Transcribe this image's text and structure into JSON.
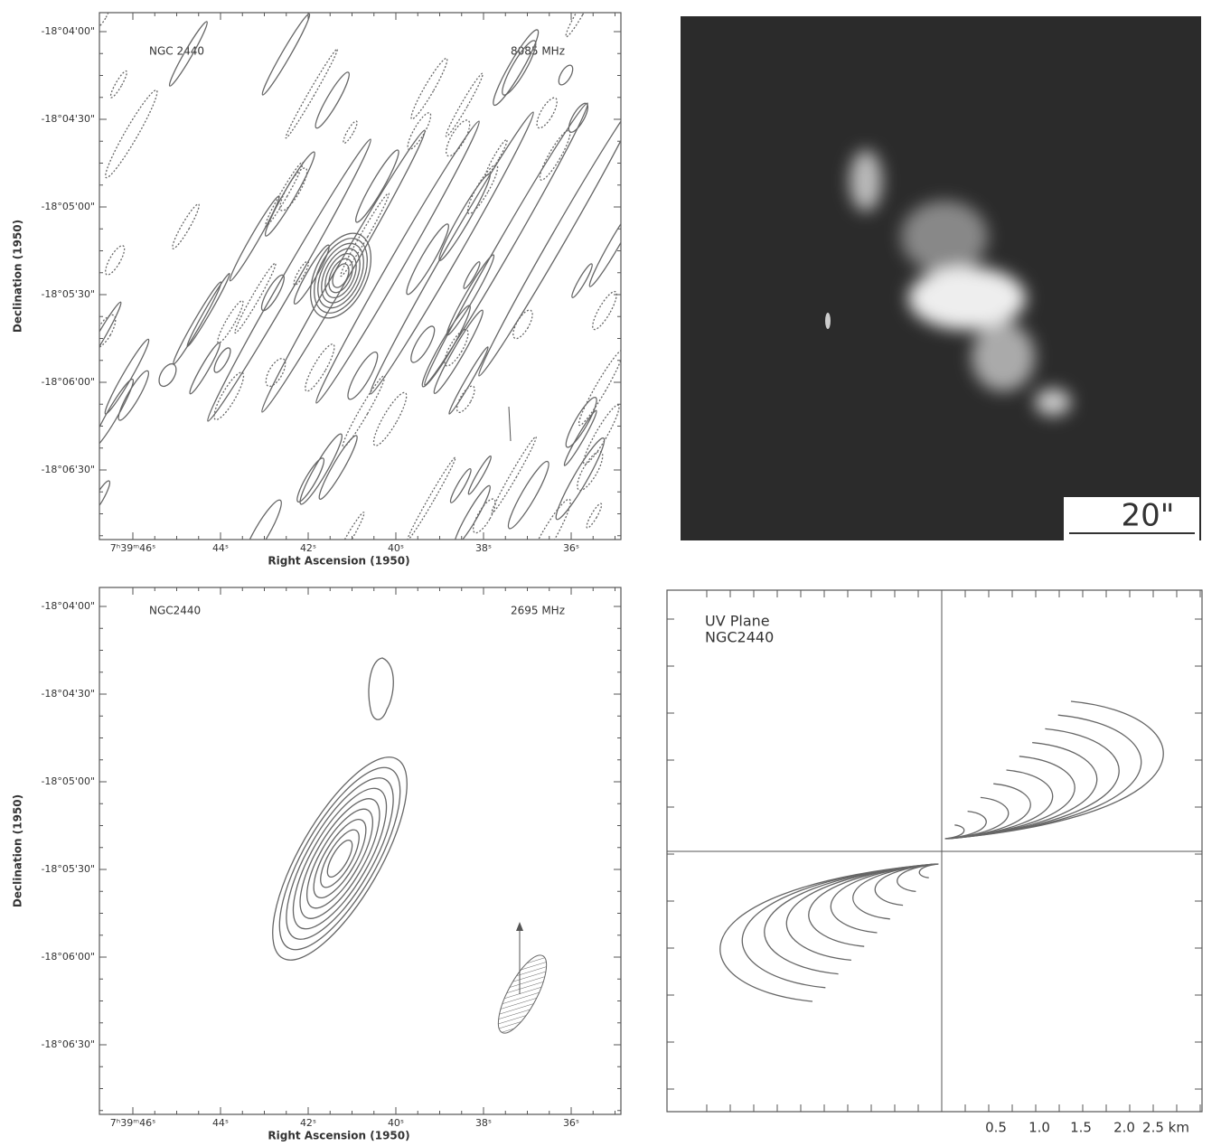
{
  "panels": [
    {
      "source": "NGC 2440",
      "frequency": "8085 MHz",
      "y_axis_title": "Declination (1950)",
      "x_axis_title": "Right Ascension (1950)",
      "y_ticks": [
        "-18°04'00\"",
        "-18°04'30\"",
        "-18°05'00\"",
        "-18°05'30\"",
        "-18°06'00\"",
        "-18°06'30\""
      ],
      "x_ticks": [
        "7ʰ39ᵐ46ˢ",
        "44ˢ",
        "42ˢ",
        "40ˢ",
        "38ˢ",
        "36ˢ"
      ]
    },
    {
      "scale_bar": "20\""
    },
    {
      "source": "NGC2440",
      "frequency": "2695 MHz",
      "y_axis_title": "Declination (1950)",
      "x_axis_title": "Right Ascension (1950)",
      "y_ticks": [
        "-18°04'00\"",
        "-18°04'30\"",
        "-18°05'00\"",
        "-18°05'30\"",
        "-18°06'00\"",
        "-18°06'30\""
      ],
      "x_ticks": [
        "7ʰ39ᵐ46ˢ",
        "44ˢ",
        "42ˢ",
        "40ˢ",
        "38ˢ",
        "36ˢ"
      ]
    },
    {
      "title": "UV Plane",
      "source": "NGC2440",
      "x_ticks": [
        "0.5",
        "1.0",
        "1.5",
        "2.0",
        "2.5 km"
      ]
    }
  ]
}
